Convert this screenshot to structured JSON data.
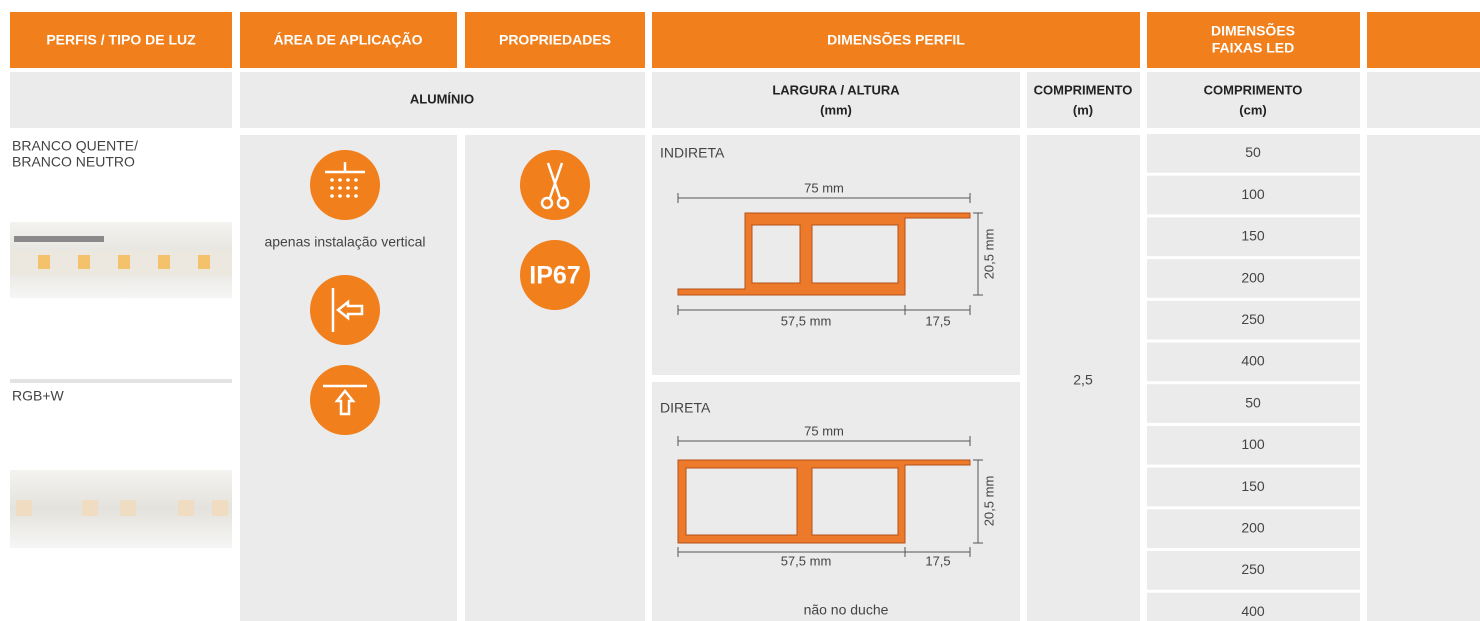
{
  "header": {
    "columns": [
      "PERFIS / TIPO DE LUZ",
      "ÁREA DE APLICAÇÃO",
      "PROPRIEDADES",
      "DIMENSÕES PERFIL"
    ],
    "led_dimensions": [
      "DIMENSÕES",
      "FAIXAS LED"
    ]
  },
  "subheader": {
    "material": "ALUMÍNIO",
    "width_height": {
      "label": "LARGURA / ALTURA",
      "unit": "(mm)"
    },
    "profile_length": {
      "label": "COMPRIMENTO",
      "unit": "(m)"
    },
    "led_length": {
      "label": "COMPRIMENTO",
      "unit": "(cm)"
    }
  },
  "light_types": [
    {
      "lines": [
        "BRANCO QUENTE/",
        "BRANCO NEUTRO"
      ]
    },
    {
      "lines": [
        "RGB+W"
      ]
    }
  ],
  "application": {
    "note": "apenas instalação vertical"
  },
  "properties": {
    "rating": "IP67"
  },
  "profiles": [
    {
      "label": "INDIRETA",
      "width": "75 mm",
      "height": "20,5 mm",
      "part_a": "57,5 mm",
      "part_b": "17,5"
    },
    {
      "label": "DIRETA",
      "width": "75 mm",
      "height": "20,5 mm",
      "part_a": "57,5 mm",
      "part_b": "17,5",
      "note": "não no duche"
    }
  ],
  "profile_length": "2,5",
  "led_lengths": [
    [
      "50",
      "100",
      "150",
      "200",
      "250",
      "400"
    ],
    [
      "50",
      "100",
      "150",
      "200",
      "250",
      "400"
    ]
  ]
}
